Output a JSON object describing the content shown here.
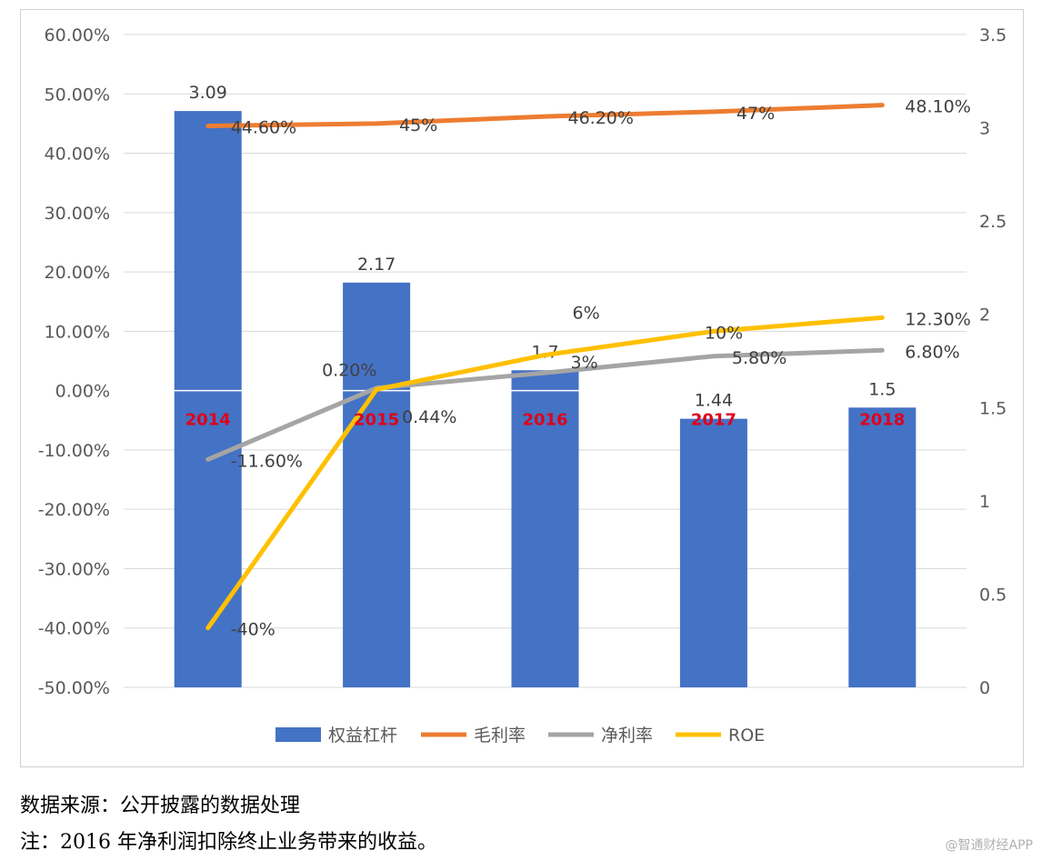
{
  "chart_data": {
    "type": "bar",
    "categories": [
      "2014",
      "2015",
      "2016",
      "2017",
      "2018"
    ],
    "y_left": {
      "ticks": [
        "60.00%",
        "50.00%",
        "40.00%",
        "30.00%",
        "20.00%",
        "10.00%",
        "0.00%",
        "-10.00%",
        "-20.00%",
        "-30.00%",
        "-40.00%",
        "-50.00%"
      ],
      "range": [
        -50,
        60
      ]
    },
    "y_right": {
      "ticks": [
        "3.5",
        "3",
        "2.5",
        "2",
        "1.5",
        "1",
        "0.5",
        "0"
      ],
      "range": [
        0,
        3.5
      ]
    },
    "bar_series": {
      "name": "权益杠杆",
      "axis": "right",
      "color": "#4472C4",
      "values": [
        3.09,
        2.17,
        1.7,
        1.44,
        1.5
      ],
      "labels": [
        "3.09",
        "2.17",
        "1.7",
        "1.44",
        "1.5"
      ]
    },
    "line_series": [
      {
        "name": "毛利率",
        "axis": "left",
        "color": "#ED7D31",
        "values": [
          44.6,
          45,
          46.2,
          47,
          48.1
        ],
        "labels": [
          "44.60%",
          "45%",
          "46.20%",
          "47%",
          "48.10%"
        ]
      },
      {
        "name": "净利率",
        "axis": "left",
        "color": "#A5A5A5",
        "values": [
          -11.6,
          0.44,
          3,
          5.8,
          6.8
        ],
        "labels": [
          "-11.60%",
          "0.44%",
          "3%",
          "5.80%",
          "6.80%"
        ]
      },
      {
        "name": "ROE",
        "axis": "left",
        "color": "#FFC000",
        "values": [
          -40,
          0.2,
          6,
          10,
          12.3
        ],
        "labels": [
          "-40%",
          "0.20%",
          "6%",
          "10%",
          "12.30%"
        ]
      }
    ],
    "category_label_color": "#E0001B",
    "legend_position": "bottom",
    "grid": true
  },
  "notes": {
    "source": "数据来源：公开披露的数据处理",
    "footnote": "注：2016 年净利润扣除终止业务带来的收益。"
  },
  "watermark": "@智通财经APP"
}
